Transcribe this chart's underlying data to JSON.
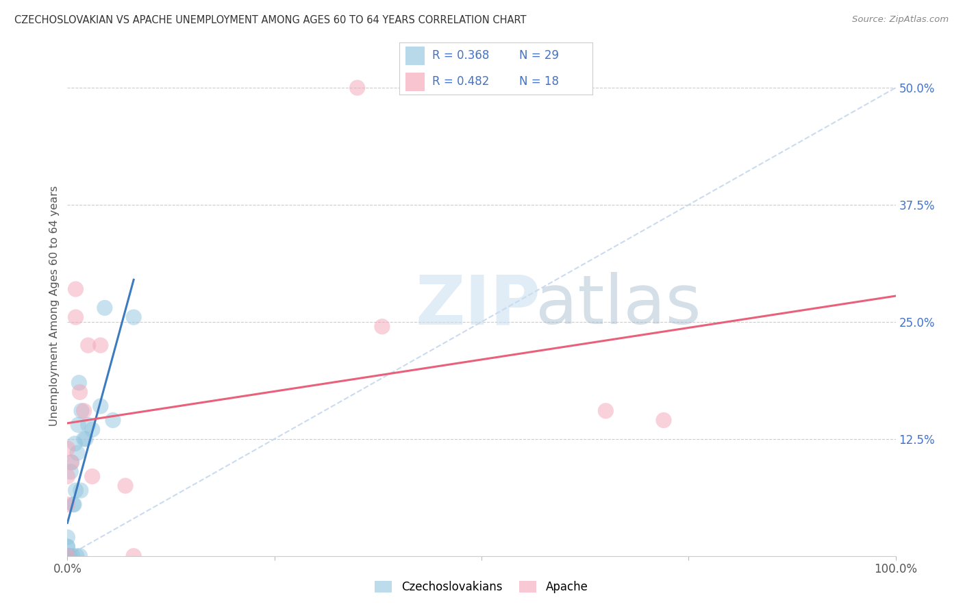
{
  "title": "CZECHOSLOVAKIAN VS APACHE UNEMPLOYMENT AMONG AGES 60 TO 64 YEARS CORRELATION CHART",
  "source": "Source: ZipAtlas.com",
  "ylabel": "Unemployment Among Ages 60 to 64 years",
  "ytick_labels": [
    "",
    "12.5%",
    "25.0%",
    "37.5%",
    "50.0%"
  ],
  "ytick_values": [
    0.0,
    0.125,
    0.25,
    0.375,
    0.5
  ],
  "xlim": [
    0.0,
    1.0
  ],
  "ylim": [
    0.0,
    0.535
  ],
  "blue_color": "#92c5de",
  "pink_color": "#f4a5b8",
  "blue_line_color": "#3d7bbf",
  "pink_line_color": "#e8607a",
  "diagonal_color": "#c5d8ee",
  "background_color": "#ffffff",
  "czechoslovakian_x": [
    0.0,
    0.0,
    0.0,
    0.0,
    0.0,
    0.0,
    0.003,
    0.004,
    0.005,
    0.006,
    0.007,
    0.008,
    0.009,
    0.01,
    0.011,
    0.012,
    0.013,
    0.014,
    0.015,
    0.016,
    0.017,
    0.02,
    0.022,
    0.025,
    0.03,
    0.04,
    0.045,
    0.055,
    0.08
  ],
  "czechoslovakian_y": [
    0.0,
    0.0,
    0.0,
    0.01,
    0.01,
    0.02,
    0.0,
    0.09,
    0.1,
    0.0,
    0.055,
    0.055,
    0.12,
    0.07,
    0.0,
    0.11,
    0.14,
    0.185,
    0.0,
    0.07,
    0.155,
    0.125,
    0.125,
    0.14,
    0.135,
    0.16,
    0.265,
    0.145,
    0.255
  ],
  "apache_x": [
    0.0,
    0.0,
    0.0,
    0.0,
    0.005,
    0.01,
    0.01,
    0.015,
    0.02,
    0.025,
    0.03,
    0.04,
    0.07,
    0.08,
    0.35,
    0.38,
    0.65,
    0.72
  ],
  "apache_y": [
    0.0,
    0.055,
    0.085,
    0.115,
    0.1,
    0.255,
    0.285,
    0.175,
    0.155,
    0.225,
    0.085,
    0.225,
    0.075,
    0.0,
    0.5,
    0.245,
    0.155,
    0.145
  ],
  "legend_r1": "R = 0.368",
  "legend_n1": "N = 29",
  "legend_r2": "R = 0.482",
  "legend_n2": "N = 18",
  "watermark_zip": "ZIP",
  "watermark_atlas": "atlas"
}
